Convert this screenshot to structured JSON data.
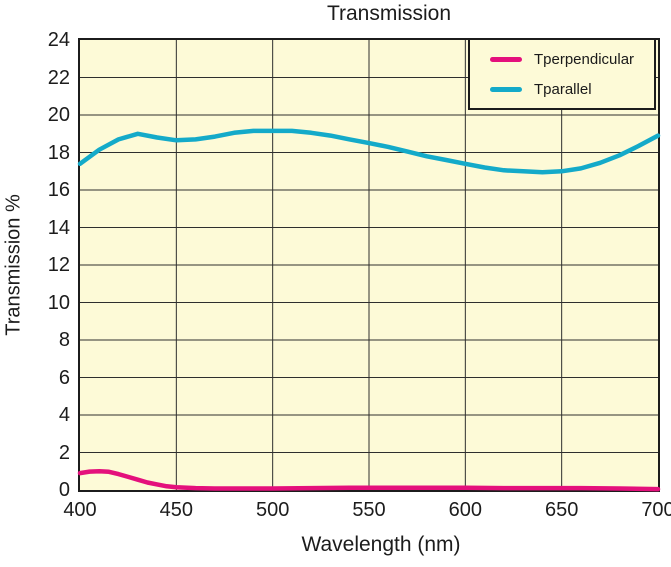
{
  "chart_data": {
    "type": "line",
    "title": "Transmission",
    "xlabel": "Wavelength (nm)",
    "ylabel": "Transmission %",
    "xlim": [
      400,
      700
    ],
    "ylim": [
      0,
      24
    ],
    "xticks": [
      400,
      450,
      500,
      550,
      600,
      650,
      700
    ],
    "yticks": [
      0,
      2,
      4,
      6,
      8,
      10,
      12,
      14,
      16,
      18,
      20,
      22,
      24
    ],
    "grid": true,
    "grid_color": "#2e2e2e",
    "plot_bg": "#FDFAD7",
    "legend_position": "top-right",
    "series": [
      {
        "name": "Tperpendicular",
        "color": "#E4107C",
        "x": [
          400,
          405,
          410,
          415,
          420,
          425,
          430,
          435,
          440,
          445,
          450,
          460,
          470,
          480,
          490,
          500,
          520,
          540,
          560,
          580,
          600,
          620,
          640,
          660,
          680,
          700
        ],
        "y": [
          0.9,
          0.98,
          1.0,
          0.97,
          0.85,
          0.7,
          0.55,
          0.4,
          0.3,
          0.2,
          0.15,
          0.1,
          0.08,
          0.08,
          0.08,
          0.08,
          0.1,
          0.12,
          0.12,
          0.12,
          0.12,
          0.1,
          0.1,
          0.1,
          0.08,
          0.05
        ]
      },
      {
        "name": "Tparallel",
        "color": "#14AAC9",
        "x": [
          400,
          410,
          420,
          430,
          440,
          450,
          460,
          470,
          480,
          490,
          500,
          510,
          520,
          530,
          540,
          550,
          560,
          570,
          580,
          590,
          600,
          610,
          620,
          630,
          640,
          650,
          660,
          670,
          680,
          690,
          700
        ],
        "y": [
          17.4,
          18.15,
          18.7,
          19.0,
          18.8,
          18.65,
          18.7,
          18.85,
          19.05,
          19.15,
          19.15,
          19.15,
          19.05,
          18.9,
          18.7,
          18.5,
          18.3,
          18.05,
          17.8,
          17.6,
          17.4,
          17.2,
          17.05,
          17.0,
          16.95,
          17.0,
          17.15,
          17.45,
          17.85,
          18.35,
          18.9
        ]
      }
    ]
  }
}
